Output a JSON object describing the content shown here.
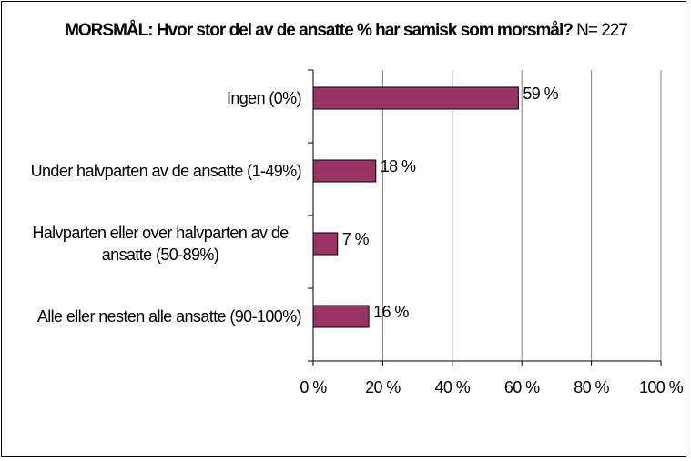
{
  "chart_data": {
    "type": "bar",
    "orientation": "horizontal",
    "title_bold": "MORSMÅL: Hvor stor del av de ansatte % har samisk som morsmål?",
    "title_suffix": "N= 227",
    "categories": [
      [
        "Ingen (0%)"
      ],
      [
        "Under halvparten av de ansatte (1-49%)"
      ],
      [
        "Halvparten eller over halvparten av de",
        "ansatte (50-89%)"
      ],
      [
        "Alle eller nesten alle ansatte (90-100%)"
      ]
    ],
    "values": [
      59,
      18,
      7,
      16
    ],
    "data_labels": [
      "59 %",
      "18 %",
      "7 %",
      "16 %"
    ],
    "xlim": [
      0,
      100
    ],
    "x_ticks": [
      0,
      20,
      40,
      60,
      80,
      100
    ],
    "x_tick_labels": [
      "0 %",
      "20 %",
      "40 %",
      "60 %",
      "80 %",
      "100 %"
    ],
    "grid": "vertical",
    "legend": "none",
    "colors": {
      "bar": "#993366",
      "grid": "#808080",
      "axis": "#000000"
    }
  }
}
